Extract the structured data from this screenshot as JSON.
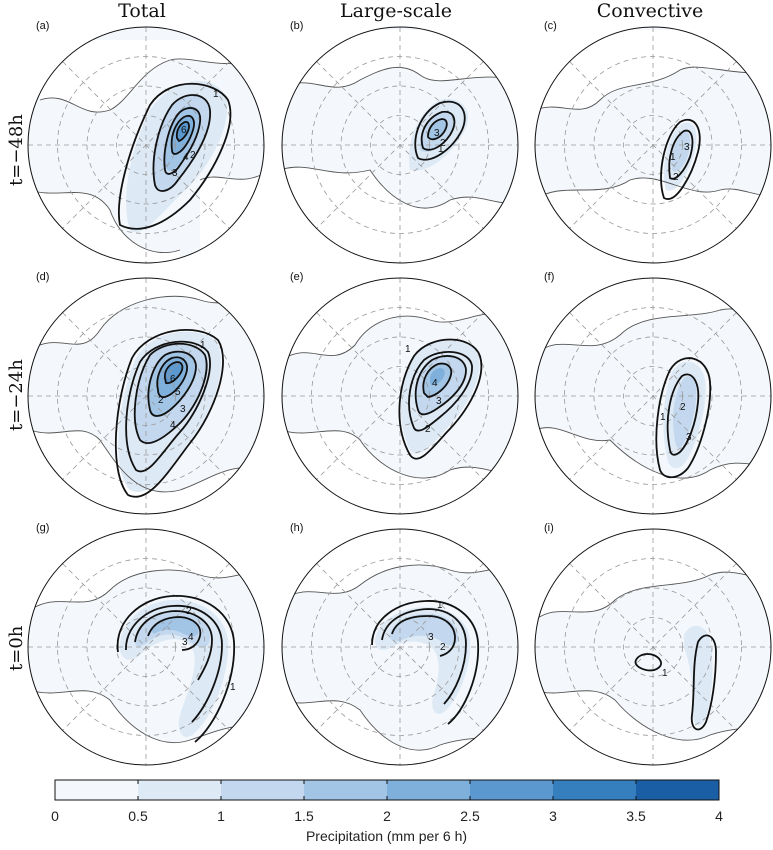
{
  "columns": [
    "Total",
    "Large-scale",
    "Convective"
  ],
  "rows": [
    "t=−48h",
    "t=−24h",
    "t=0h"
  ],
  "panel_labels": [
    "(a)",
    "(b)",
    "(c)",
    "(d)",
    "(e)",
    "(f)",
    "(g)",
    "(h)",
    "(i)"
  ],
  "colorbar": {
    "label": "Precipitation (mm per 6 h)",
    "ticks": [
      "0",
      "0.5",
      "1",
      "1.5",
      "2",
      "2.5",
      "3",
      "3.5",
      "4"
    ],
    "colors": [
      "#f4f8fc",
      "#dde9f5",
      "#c3d8ee",
      "#a2c5e6",
      "#7fb0dc",
      "#5a98cf",
      "#357fbf",
      "#1a5fa6"
    ]
  },
  "contour_labels": {
    "a": [
      "1",
      "2",
      "3",
      "4",
      "6"
    ],
    "b": [
      "1",
      "2",
      "3"
    ],
    "c": [
      "1",
      "2",
      "3"
    ],
    "d": [
      "1",
      "2",
      "3",
      "4",
      "5",
      "6"
    ],
    "e": [
      "1",
      "2",
      "3",
      "4"
    ],
    "f": [
      "1",
      "2",
      "3"
    ],
    "g": [
      "1",
      "2",
      "3",
      "4"
    ],
    "h": [
      "1",
      "2",
      "3"
    ],
    "i": [
      "1"
    ]
  }
}
